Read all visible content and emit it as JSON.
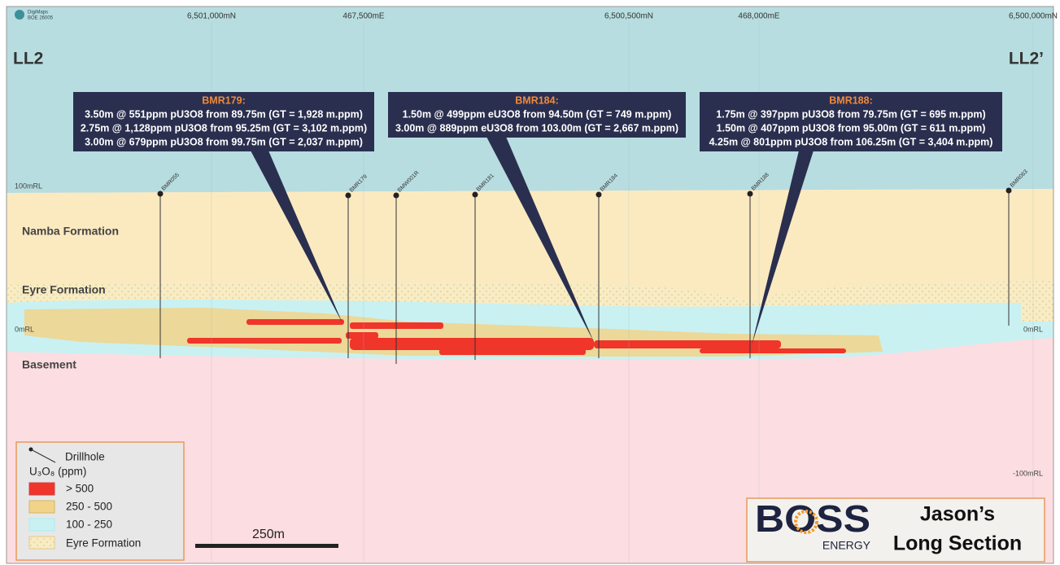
{
  "map": {
    "source": [
      "DigiMaps",
      "BOE 26005"
    ],
    "coordinates": [
      "6,501,000mN",
      "467,500mE",
      "6,500,500mN",
      "468,000mE",
      "6,500,000mN"
    ],
    "section_start": "LL2",
    "section_end": "LL2’",
    "rl_left": [
      "100mRL",
      "0mRL"
    ],
    "rl_right": [
      "0mRL",
      "-100mRL"
    ],
    "formations": [
      "Namba Formation",
      "Eyre Formation",
      "Basement"
    ],
    "drillholes": [
      "BMR055",
      "BMR179",
      "BMW001R",
      "BMR181",
      "BMR184",
      "BMR188",
      "BMR063"
    ]
  },
  "callouts": [
    {
      "title": "BMR179:",
      "lines": [
        "3.50m @ 551ppm pU3O8 from 89.75m (GT = 1,928 m.ppm)",
        "2.75m @ 1,128ppm pU3O8 from 95.25m (GT = 3,102 m.ppm)",
        "3.00m @ 679ppm pU3O8 from 99.75m (GT = 2,037 m.ppm)"
      ]
    },
    {
      "title": "BMR184:",
      "lines": [
        "1.50m @ 499ppm eU3O8 from 94.50m (GT = 749 m.ppm)",
        "3.00m @ 889ppm eU3O8 from 103.00m (GT = 2,667 m.ppm)"
      ]
    },
    {
      "title": "BMR188:",
      "lines": [
        "1.75m @ 397ppm pU3O8 from 79.75m (GT = 695 m.ppm)",
        "1.50m @ 407ppm pU3O8 from 95.00m (GT = 611 m.ppm)",
        "4.25m @ 801ppm pU3O8 from 106.25m (GT = 3,404 m.ppm)"
      ]
    }
  ],
  "legend": {
    "drillhole": "Drillhole",
    "title": "U₃O₈ (ppm)",
    "items": [
      "> 500",
      "250 - 500",
      "100 - 250",
      "Eyre Formation"
    ]
  },
  "scale_bar": "250m",
  "logo": {
    "brand": "BOSS",
    "sub": "ENERGY"
  },
  "title": [
    "Jason’s",
    "Long Section"
  ]
}
